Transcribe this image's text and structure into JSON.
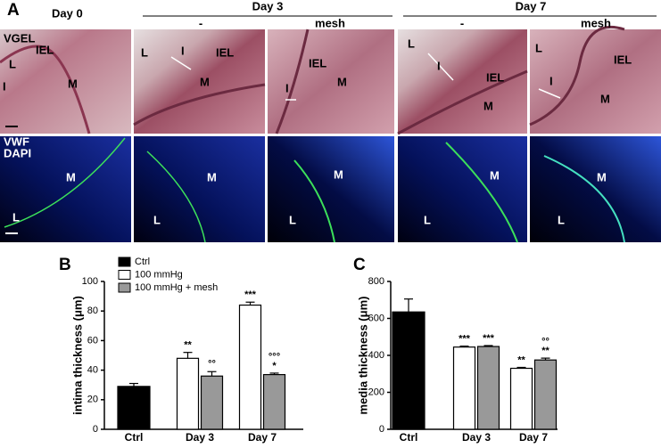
{
  "panel_a": {
    "letter": "A",
    "day0": "Day 0",
    "day3": "Day 3",
    "day7": "Day 7",
    "subheaders": [
      "-",
      "mesh",
      "-",
      "mesh"
    ],
    "top_row": [
      [
        "VGEL",
        "IEL",
        "L",
        "I",
        "M"
      ],
      [
        "L",
        "I",
        "IEL",
        "M"
      ],
      [
        "IEL",
        "M",
        "I"
      ],
      [
        "L",
        "I",
        "IEL",
        "M"
      ],
      [
        "L",
        "IEL",
        "I",
        "M"
      ]
    ],
    "bottom_row": [
      [
        "VWF",
        "DAPI",
        "M",
        "L"
      ],
      [
        "M",
        "L"
      ],
      [
        "M",
        "L"
      ],
      [
        "M",
        "L"
      ],
      [
        "M",
        "L"
      ]
    ]
  },
  "chart_data": [
    {
      "type": "bar",
      "panel_label": "B",
      "ylabel": "intima thickness (μm)",
      "categories": [
        "Ctrl",
        "Day 3",
        "Day 7"
      ],
      "ylim": [
        0,
        100
      ],
      "yticks": [
        0,
        20,
        40,
        60,
        80,
        100
      ],
      "legend": "upper left",
      "series": [
        {
          "name": "Ctrl",
          "color": "#000000",
          "values": [
            29,
            null,
            null
          ],
          "errors": [
            2,
            null,
            null
          ]
        },
        {
          "name": "100 mmHg",
          "color": "#ffffff",
          "values": [
            null,
            48,
            84
          ],
          "errors": [
            null,
            4,
            2
          ],
          "annotations": [
            null,
            [
              "**"
            ],
            [
              "***"
            ]
          ]
        },
        {
          "name": "100 mmHg + mesh",
          "color": "#999999",
          "values": [
            null,
            36,
            37
          ],
          "errors": [
            null,
            3,
            1
          ],
          "annotations": [
            null,
            [
              "°°"
            ],
            [
              "°°°",
              "*"
            ]
          ]
        }
      ]
    },
    {
      "type": "bar",
      "panel_label": "C",
      "ylabel": "media thickness (μm)",
      "categories": [
        "Ctrl",
        "Day 3",
        "Day 7"
      ],
      "ylim": [
        0,
        800
      ],
      "yticks": [
        0,
        200,
        400,
        600,
        800
      ],
      "series": [
        {
          "color": "#000000",
          "values": [
            635,
            null,
            null
          ],
          "errors": [
            70,
            null,
            null
          ]
        },
        {
          "color": "#ffffff",
          "values": [
            null,
            445,
            330
          ],
          "errors": [
            null,
            5,
            5
          ],
          "annotations": [
            null,
            [
              "***"
            ],
            [
              "**"
            ]
          ]
        },
        {
          "color": "#999999",
          "values": [
            null,
            448,
            375
          ],
          "errors": [
            null,
            5,
            10
          ],
          "annotations": [
            null,
            [
              "***"
            ],
            [
              "°°",
              "**"
            ]
          ]
        }
      ]
    }
  ]
}
